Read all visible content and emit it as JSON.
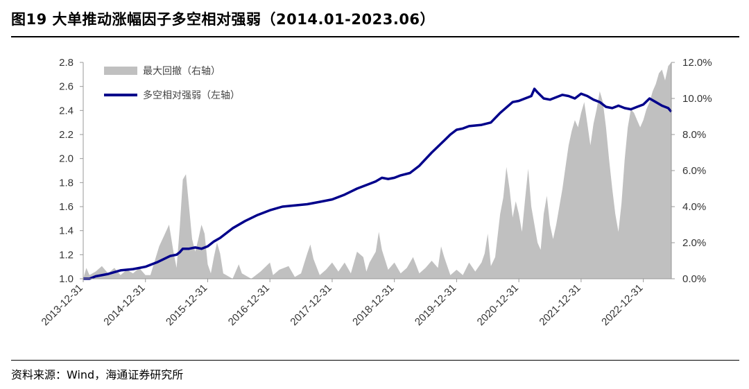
{
  "title": "图19 大单推动涨幅因子多空相对强弱（2014.01-2023.06）",
  "source": "资料来源：Wind，海通证券研究所",
  "chart_data": {
    "type": "line+area",
    "x_ticks": [
      "2013-12-31",
      "2014-12-31",
      "2015-12-31",
      "2016-12-31",
      "2017-12-31",
      "2018-12-31",
      "2019-12-31",
      "2020-12-31",
      "2021-12-31",
      "2022-12-31"
    ],
    "y_left": {
      "min": 1.0,
      "max": 2.8,
      "ticks": [
        "1.0",
        "1.2",
        "1.4",
        "1.6",
        "1.8",
        "2.0",
        "2.2",
        "2.4",
        "2.6",
        "2.8"
      ]
    },
    "y_right": {
      "min": 0,
      "max": 12,
      "ticks": [
        "0.0%",
        "2.0%",
        "4.0%",
        "6.0%",
        "8.0%",
        "10.0%",
        "12.0%"
      ]
    },
    "series": [
      {
        "name": "最大回撤（右轴）",
        "axis": "right",
        "color": "#c0c0c0",
        "points": [
          [
            2014.0,
            0.0
          ],
          [
            2014.05,
            0.6
          ],
          [
            2014.1,
            0.2
          ],
          [
            2014.2,
            0.4
          ],
          [
            2014.3,
            0.7
          ],
          [
            2014.4,
            0.3
          ],
          [
            2014.5,
            0.6
          ],
          [
            2014.6,
            0.2
          ],
          [
            2014.7,
            0.5
          ],
          [
            2014.8,
            0.3
          ],
          [
            2014.9,
            0.6
          ],
          [
            2015.0,
            0.2
          ],
          [
            2015.08,
            0.2
          ],
          [
            2015.15,
            1.0
          ],
          [
            2015.22,
            1.8
          ],
          [
            2015.3,
            2.4
          ],
          [
            2015.38,
            3.0
          ],
          [
            2015.45,
            1.5
          ],
          [
            2015.5,
            0.6
          ],
          [
            2015.55,
            2.8
          ],
          [
            2015.6,
            5.5
          ],
          [
            2015.65,
            5.8
          ],
          [
            2015.7,
            4.0
          ],
          [
            2015.75,
            2.2
          ],
          [
            2015.8,
            1.5
          ],
          [
            2015.85,
            2.2
          ],
          [
            2015.9,
            3.0
          ],
          [
            2015.95,
            2.5
          ],
          [
            2016.0,
            0.8
          ],
          [
            2016.05,
            0.3
          ],
          [
            2016.1,
            1.2
          ],
          [
            2016.15,
            2.0
          ],
          [
            2016.2,
            1.4
          ],
          [
            2016.25,
            0.3
          ],
          [
            2016.4,
            0.0
          ],
          [
            2016.5,
            0.8
          ],
          [
            2016.55,
            0.3
          ],
          [
            2016.7,
            0.0
          ],
          [
            2016.85,
            0.4
          ],
          [
            2017.0,
            0.9
          ],
          [
            2017.05,
            0.2
          ],
          [
            2017.15,
            0.5
          ],
          [
            2017.3,
            0.7
          ],
          [
            2017.4,
            0.1
          ],
          [
            2017.5,
            0.3
          ],
          [
            2017.6,
            1.4
          ],
          [
            2017.65,
            1.9
          ],
          [
            2017.7,
            1.1
          ],
          [
            2017.8,
            0.2
          ],
          [
            2017.9,
            0.5
          ],
          [
            2018.0,
            0.9
          ],
          [
            2018.1,
            0.4
          ],
          [
            2018.2,
            0.9
          ],
          [
            2018.3,
            0.3
          ],
          [
            2018.4,
            1.5
          ],
          [
            2018.5,
            1.2
          ],
          [
            2018.55,
            0.4
          ],
          [
            2018.6,
            0.9
          ],
          [
            2018.7,
            1.5
          ],
          [
            2018.75,
            2.6
          ],
          [
            2018.8,
            1.6
          ],
          [
            2018.9,
            0.5
          ],
          [
            2019.0,
            0.9
          ],
          [
            2019.1,
            0.3
          ],
          [
            2019.2,
            0.6
          ],
          [
            2019.3,
            1.2
          ],
          [
            2019.4,
            0.3
          ],
          [
            2019.5,
            0.6
          ],
          [
            2019.6,
            1.0
          ],
          [
            2019.7,
            0.6
          ],
          [
            2019.75,
            1.8
          ],
          [
            2019.8,
            1.2
          ],
          [
            2019.9,
            0.2
          ],
          [
            2020.0,
            0.5
          ],
          [
            2020.1,
            0.2
          ],
          [
            2020.2,
            0.9
          ],
          [
            2020.3,
            0.4
          ],
          [
            2020.4,
            0.9
          ],
          [
            2020.45,
            1.4
          ],
          [
            2020.5,
            2.5
          ],
          [
            2020.55,
            0.7
          ],
          [
            2020.62,
            1.2
          ],
          [
            2020.7,
            3.6
          ],
          [
            2020.75,
            4.5
          ],
          [
            2020.8,
            6.2
          ],
          [
            2020.85,
            5.0
          ],
          [
            2020.9,
            3.4
          ],
          [
            2020.95,
            4.3
          ],
          [
            2021.0,
            3.6
          ],
          [
            2021.05,
            2.6
          ],
          [
            2021.1,
            4.4
          ],
          [
            2021.15,
            6.1
          ],
          [
            2021.2,
            4.0
          ],
          [
            2021.25,
            3.0
          ],
          [
            2021.3,
            2.0
          ],
          [
            2021.35,
            1.6
          ],
          [
            2021.4,
            3.6
          ],
          [
            2021.45,
            4.6
          ],
          [
            2021.5,
            3.0
          ],
          [
            2021.55,
            2.2
          ],
          [
            2021.6,
            3.0
          ],
          [
            2021.65,
            4.0
          ],
          [
            2021.7,
            5.0
          ],
          [
            2021.75,
            6.2
          ],
          [
            2021.8,
            7.4
          ],
          [
            2021.85,
            8.2
          ],
          [
            2021.9,
            8.8
          ],
          [
            2021.95,
            8.4
          ],
          [
            2022.0,
            9.2
          ],
          [
            2022.05,
            9.8
          ],
          [
            2022.1,
            8.6
          ],
          [
            2022.15,
            7.4
          ],
          [
            2022.2,
            8.6
          ],
          [
            2022.25,
            9.4
          ],
          [
            2022.3,
            10.4
          ],
          [
            2022.35,
            9.8
          ],
          [
            2022.4,
            8.4
          ],
          [
            2022.45,
            6.6
          ],
          [
            2022.5,
            5.0
          ],
          [
            2022.55,
            3.6
          ],
          [
            2022.6,
            2.6
          ],
          [
            2022.65,
            4.2
          ],
          [
            2022.7,
            6.6
          ],
          [
            2022.75,
            8.4
          ],
          [
            2022.8,
            9.4
          ],
          [
            2022.85,
            9.2
          ],
          [
            2022.9,
            8.8
          ],
          [
            2022.95,
            8.4
          ],
          [
            2023.0,
            8.8
          ],
          [
            2023.05,
            9.4
          ],
          [
            2023.1,
            9.8
          ],
          [
            2023.15,
            10.4
          ],
          [
            2023.2,
            10.8
          ],
          [
            2023.25,
            11.4
          ],
          [
            2023.3,
            11.6
          ],
          [
            2023.35,
            11.0
          ],
          [
            2023.4,
            11.8
          ],
          [
            2023.45,
            12.0
          ]
        ]
      },
      {
        "name": "多空相对强弱（左轴）",
        "axis": "left",
        "color": "#00008b",
        "points": [
          [
            2014.0,
            1.0
          ],
          [
            2014.1,
            1.0
          ],
          [
            2014.2,
            1.02
          ],
          [
            2014.4,
            1.04
          ],
          [
            2014.6,
            1.07
          ],
          [
            2014.8,
            1.08
          ],
          [
            2015.0,
            1.1
          ],
          [
            2015.2,
            1.14
          ],
          [
            2015.4,
            1.19
          ],
          [
            2015.5,
            1.2
          ],
          [
            2015.55,
            1.22
          ],
          [
            2015.6,
            1.25
          ],
          [
            2015.7,
            1.25
          ],
          [
            2015.8,
            1.26
          ],
          [
            2015.9,
            1.25
          ],
          [
            2016.0,
            1.27
          ],
          [
            2016.1,
            1.31
          ],
          [
            2016.2,
            1.34
          ],
          [
            2016.4,
            1.42
          ],
          [
            2016.6,
            1.48
          ],
          [
            2016.8,
            1.53
          ],
          [
            2017.0,
            1.57
          ],
          [
            2017.2,
            1.6
          ],
          [
            2017.4,
            1.61
          ],
          [
            2017.6,
            1.62
          ],
          [
            2017.8,
            1.64
          ],
          [
            2018.0,
            1.66
          ],
          [
            2018.2,
            1.7
          ],
          [
            2018.4,
            1.75
          ],
          [
            2018.6,
            1.79
          ],
          [
            2018.7,
            1.81
          ],
          [
            2018.8,
            1.84
          ],
          [
            2018.9,
            1.83
          ],
          [
            2019.0,
            1.84
          ],
          [
            2019.1,
            1.86
          ],
          [
            2019.25,
            1.88
          ],
          [
            2019.4,
            1.94
          ],
          [
            2019.6,
            2.05
          ],
          [
            2019.8,
            2.15
          ],
          [
            2019.9,
            2.2
          ],
          [
            2020.0,
            2.24
          ],
          [
            2020.1,
            2.25
          ],
          [
            2020.2,
            2.27
          ],
          [
            2020.4,
            2.28
          ],
          [
            2020.55,
            2.3
          ],
          [
            2020.7,
            2.38
          ],
          [
            2020.9,
            2.47
          ],
          [
            2021.0,
            2.48
          ],
          [
            2021.1,
            2.5
          ],
          [
            2021.2,
            2.52
          ],
          [
            2021.25,
            2.58
          ],
          [
            2021.3,
            2.55
          ],
          [
            2021.4,
            2.5
          ],
          [
            2021.5,
            2.49
          ],
          [
            2021.6,
            2.51
          ],
          [
            2021.7,
            2.53
          ],
          [
            2021.8,
            2.52
          ],
          [
            2021.9,
            2.5
          ],
          [
            2022.0,
            2.54
          ],
          [
            2022.1,
            2.52
          ],
          [
            2022.2,
            2.49
          ],
          [
            2022.3,
            2.47
          ],
          [
            2022.4,
            2.43
          ],
          [
            2022.5,
            2.42
          ],
          [
            2022.6,
            2.44
          ],
          [
            2022.7,
            2.42
          ],
          [
            2022.8,
            2.41
          ],
          [
            2022.9,
            2.43
          ],
          [
            2023.0,
            2.45
          ],
          [
            2023.1,
            2.5
          ],
          [
            2023.2,
            2.47
          ],
          [
            2023.3,
            2.44
          ],
          [
            2023.4,
            2.42
          ],
          [
            2023.45,
            2.39
          ]
        ]
      }
    ],
    "legend_position": "top-left",
    "grid": false
  }
}
